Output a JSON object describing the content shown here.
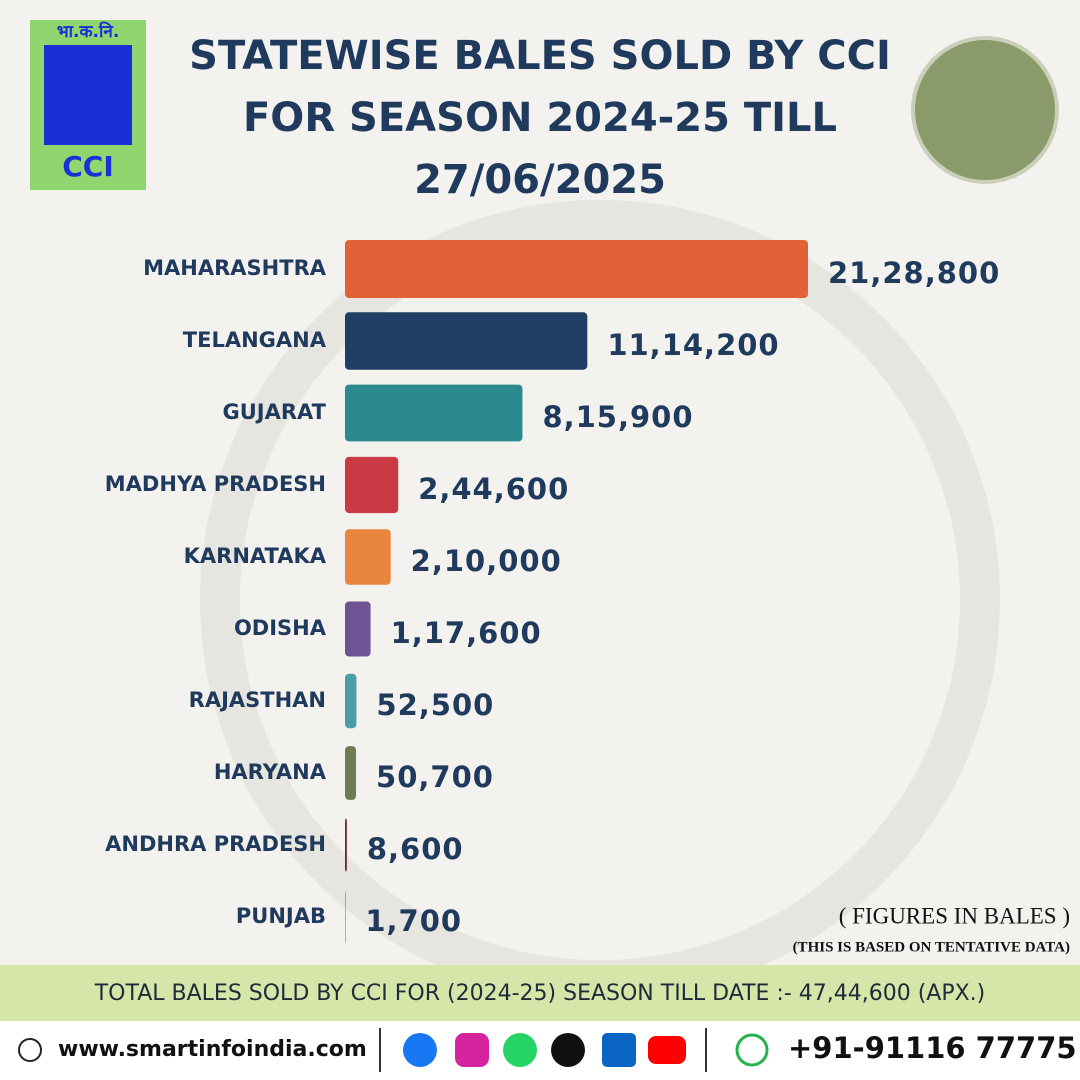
{
  "logo": {
    "hindi": "भा.क.नि.",
    "text": "CCI"
  },
  "header": {
    "title_lines": [
      "STATEWISE BALES SOLD BY CCI",
      "FOR SEASON 2024-25 TILL",
      "27/06/2025"
    ]
  },
  "chart_data": {
    "type": "bar",
    "orientation": "horizontal",
    "categories": [
      "MAHARASHTRA",
      "TELANGANA",
      "GUJARAT",
      "MADHYA PRADESH",
      "KARNATAKA",
      "ODISHA",
      "RAJASTHAN",
      "HARYANA",
      "ANDHRA PRADESH",
      "PUNJAB"
    ],
    "values": [
      2128800,
      1114200,
      815900,
      244600,
      210000,
      117600,
      52500,
      50700,
      8600,
      1700
    ],
    "value_labels": [
      "21,28,800",
      "11,14,200",
      "8,15,900",
      "2,44,600",
      "2,10,000",
      "1,17,600",
      "52,500",
      "50,700",
      "8,600",
      "1,700"
    ],
    "colors": [
      "#e06236",
      "#1f3f64",
      "#2a8a8e",
      "#c93a45",
      "#e8853f",
      "#6e5494",
      "#4a9ea8",
      "#6f7b55",
      "#6b2f2f",
      "#1f3f64"
    ]
  },
  "notes": {
    "unit": "( FIGURES IN BALES )",
    "disclaimer": "(THIS IS BASED ON TENTATIVE DATA)"
  },
  "summary": "TOTAL BALES SOLD BY CCI FOR (2024-25) SEASON TILL DATE :- 47,44,600 (APX.)",
  "footer": {
    "website": "www.smartinfoindia.com",
    "phone": "+91-91116 77775"
  }
}
